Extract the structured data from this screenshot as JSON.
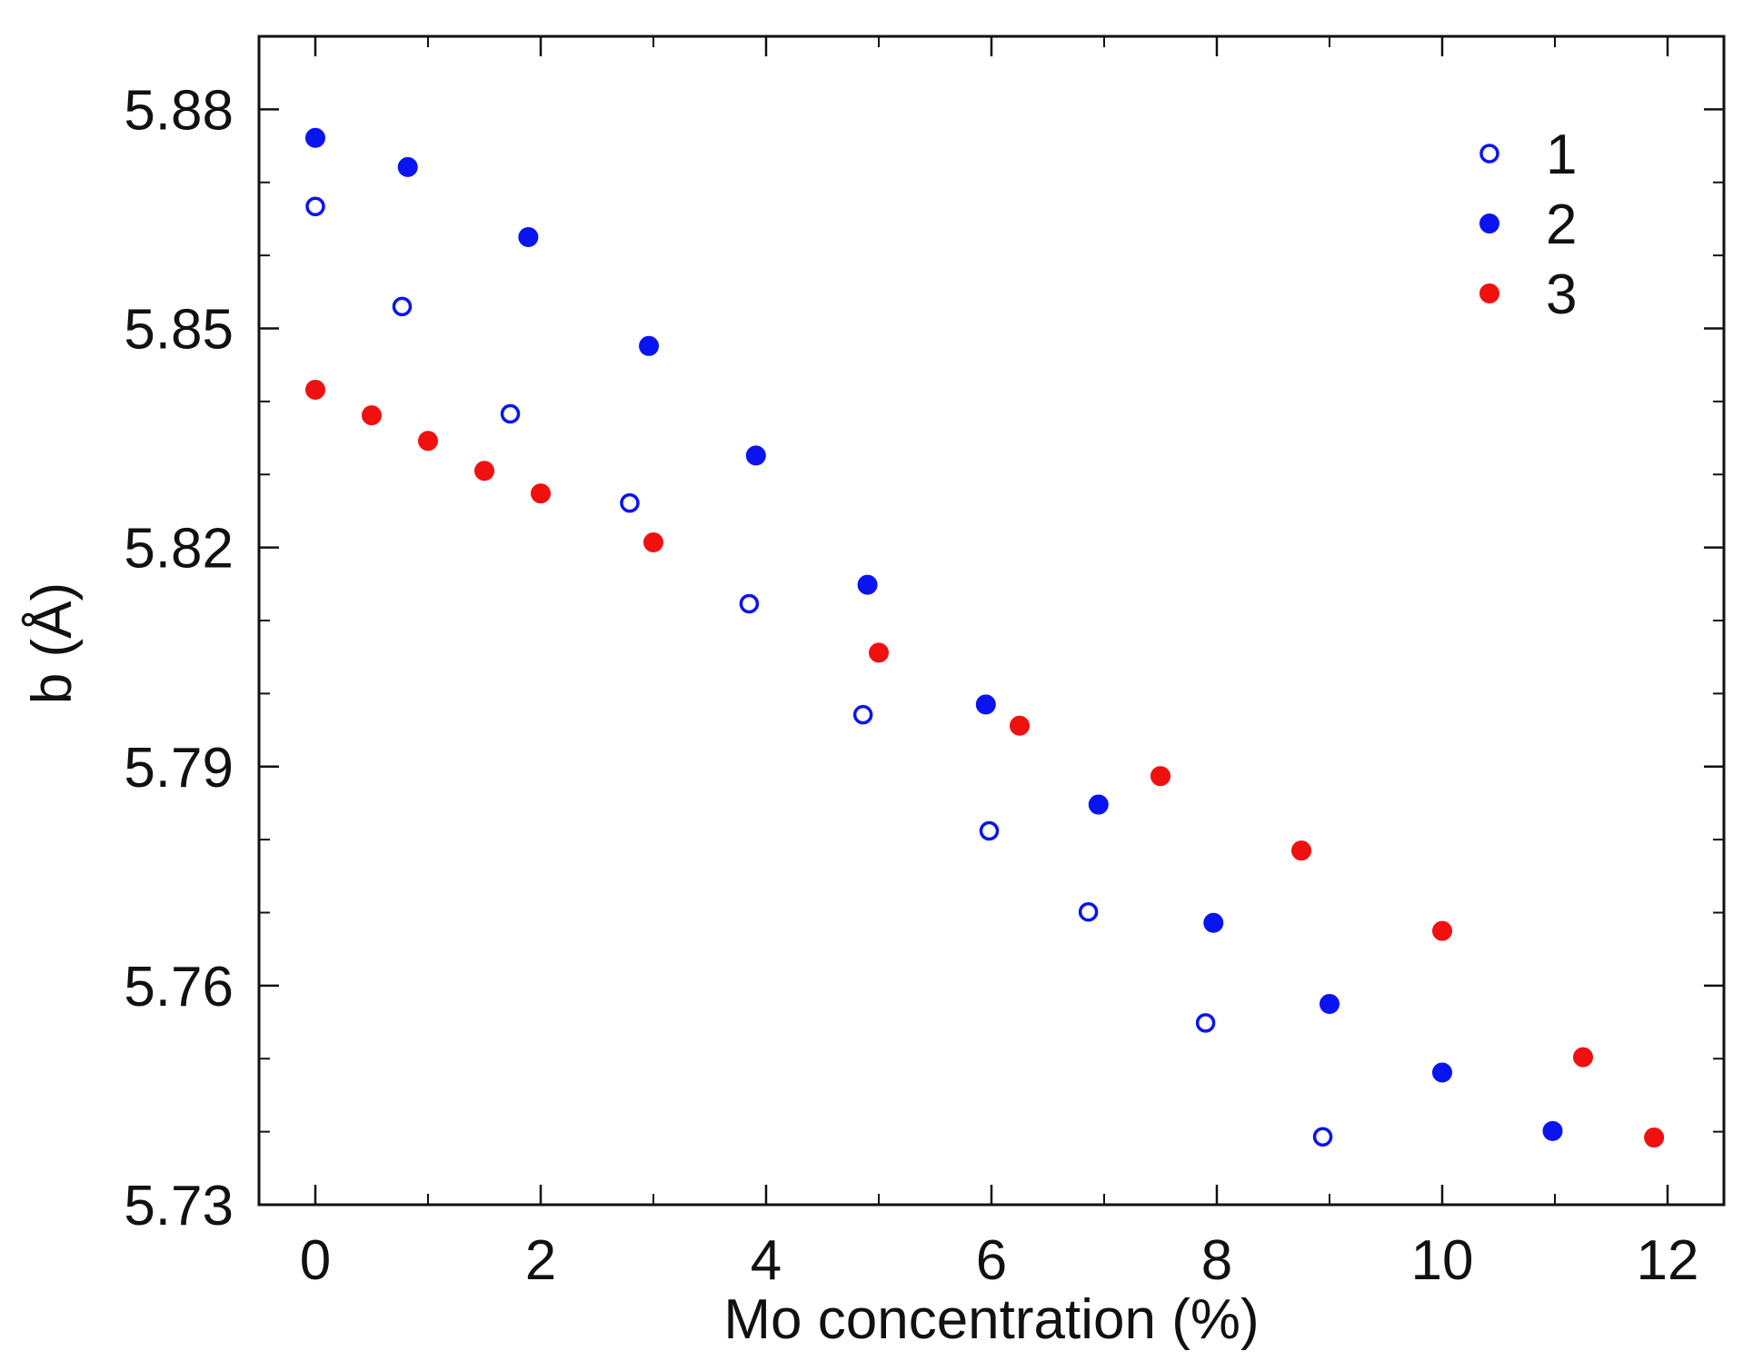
{
  "chart_data": {
    "type": "scatter",
    "title": "",
    "xlabel": "Mo concentration (%)",
    "ylabel": "b (Å)",
    "xlim": [
      -0.5,
      12.5
    ],
    "ylim": [
      5.73,
      5.89
    ],
    "xticks": [
      0,
      2,
      4,
      6,
      8,
      10,
      12
    ],
    "xtick_labels": [
      "0",
      "2",
      "4",
      "6",
      "8",
      "10",
      "12"
    ],
    "xticks_minor": [
      1,
      3,
      5,
      7,
      9,
      11
    ],
    "yticks": [
      5.73,
      5.76,
      5.79,
      5.82,
      5.85,
      5.88
    ],
    "ytick_labels": [
      "5.73",
      "5.76",
      "5.79",
      "5.82",
      "5.85",
      "5.88"
    ],
    "yticks_minor": [
      5.74,
      5.75,
      5.77,
      5.78,
      5.8,
      5.81,
      5.83,
      5.84,
      5.86,
      5.87
    ],
    "grid": false,
    "legend_position": "top-right",
    "series": [
      {
        "name": "1",
        "marker": "open-circle",
        "color": "#0a14f0",
        "x": [
          0.0,
          0.77,
          1.73,
          2.79,
          3.85,
          4.86,
          5.98,
          6.86,
          7.9,
          8.94
        ],
        "y": [
          5.8667,
          5.853,
          5.8383,
          5.8261,
          5.8123,
          5.7971,
          5.7812,
          5.7701,
          5.7549,
          5.7393
        ]
      },
      {
        "name": "2",
        "marker": "filled-circle",
        "color": "#0a14f0",
        "x": [
          0.0,
          0.82,
          1.89,
          2.96,
          3.91,
          4.9,
          5.95,
          6.95,
          7.97,
          9.0,
          10.0,
          10.98
        ],
        "y": [
          5.8761,
          5.8721,
          5.8625,
          5.8476,
          5.8326,
          5.8149,
          5.7985,
          5.7848,
          5.7686,
          5.7575,
          5.7481,
          5.7401
        ]
      },
      {
        "name": "3",
        "marker": "filled-circle",
        "color": "#f01010",
        "x": [
          0.0,
          0.5,
          1.0,
          1.5,
          2.0,
          3.0,
          5.0,
          6.25,
          7.5,
          8.75,
          10.0,
          11.25,
          11.88
        ],
        "y": [
          5.8416,
          5.8381,
          5.8346,
          5.8305,
          5.8274,
          5.8207,
          5.8056,
          5.7956,
          5.7887,
          5.7785,
          5.7675,
          5.7502,
          5.7392
        ]
      }
    ]
  }
}
